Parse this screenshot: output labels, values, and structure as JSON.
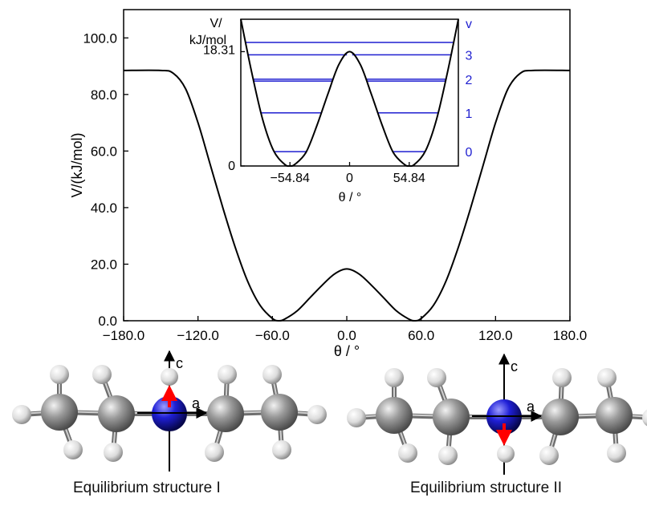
{
  "chart_data": [
    {
      "type": "line",
      "title": "",
      "xlabel": "θ / °",
      "ylabel": "V/(kJ/mol)",
      "xlim": [
        -180,
        180
      ],
      "ylim": [
        0,
        110
      ],
      "xticks": [
        -180,
        -120,
        -60,
        0,
        60,
        120,
        180
      ],
      "xtick_labels": [
        "−180.0",
        "−120.0",
        "−60.0",
        "0.0",
        "60.0",
        "120.0",
        "180.0"
      ],
      "yticks": [
        0,
        20,
        40,
        60,
        80,
        100
      ],
      "ytick_labels": [
        "0.0",
        "20.0",
        "40.0",
        "60.0",
        "80.0",
        "100.0"
      ],
      "grid": false,
      "series": [
        {
          "x": [
            -180,
            -150,
            -140,
            -130,
            -120,
            -110,
            -100,
            -90,
            -80,
            -70,
            -60,
            -54.84,
            -50,
            -40,
            -30,
            -20,
            -10,
            0,
            10,
            20,
            30,
            40,
            50,
            54.84,
            60,
            70,
            80,
            90,
            100,
            110,
            120,
            130,
            140,
            150,
            180
          ],
          "y": [
            88.5,
            88.5,
            87.5,
            82,
            70,
            55,
            40,
            26,
            14,
            5.5,
            0.8,
            0,
            0.6,
            3.5,
            8,
            12.5,
            16.5,
            18.31,
            16.5,
            12.5,
            8,
            3.5,
            0.6,
            0,
            0.8,
            5.5,
            14,
            26,
            40,
            55,
            70,
            82,
            87.5,
            88.5,
            88.5
          ]
        }
      ]
    },
    {
      "type": "line",
      "title": "",
      "xlabel": "θ / °",
      "ylabel": "V/ kJ/mol",
      "ylabel_lines": [
        "V/",
        "kJ/mol"
      ],
      "xlim": [
        -100,
        100
      ],
      "ylim": [
        0,
        23.5
      ],
      "xticks": [
        -54.84,
        0,
        54.84
      ],
      "xtick_labels": [
        "−54.84",
        "0",
        "54.84"
      ],
      "yticks": [
        0,
        18.31
      ],
      "ytick_labels": [
        "0",
        "18.31"
      ],
      "series": [
        {
          "x": [
            -100,
            -90,
            -80,
            -70,
            -60,
            -54.84,
            -50,
            -40,
            -30,
            -20,
            -10,
            0,
            10,
            20,
            30,
            40,
            50,
            54.84,
            60,
            70,
            80,
            90,
            100
          ],
          "y": [
            23.5,
            15,
            7.5,
            2.5,
            0.3,
            0,
            0.3,
            2.2,
            6.5,
            11.5,
            16.2,
            18.31,
            16.2,
            11.5,
            6.5,
            2.2,
            0.3,
            0,
            0.3,
            2.5,
            7.5,
            15,
            23.5
          ]
        }
      ],
      "energy_levels": [
        {
          "v": "0",
          "energy": 2.3,
          "label_shown": true
        },
        {
          "v": "1",
          "energy": 8.5,
          "label_shown": true
        },
        {
          "v": "",
          "energy": 13.6,
          "label_shown": false
        },
        {
          "v": "2",
          "energy": 13.9,
          "label_shown": true
        },
        {
          "v": "3",
          "energy": 17.8,
          "label_shown": true
        },
        {
          "v": "",
          "energy": 19.8,
          "label_shown": false
        }
      ],
      "level_axis_label": "v",
      "level_color": "#1f1fd0"
    }
  ],
  "structures": [
    {
      "caption": "Equilibrium structure I",
      "axis_c": "c",
      "axis_a": "a"
    },
    {
      "caption": "Equilibrium structure II",
      "axis_c": "c",
      "axis_a": "a"
    }
  ],
  "colors": {
    "curve": "#000000",
    "levels": "#1f1fd0",
    "nitrogen": "#1a1ad6",
    "dipole": "#ff0000",
    "carbon": "#8a8a8a",
    "hydrogen": "#e6e6e6"
  }
}
